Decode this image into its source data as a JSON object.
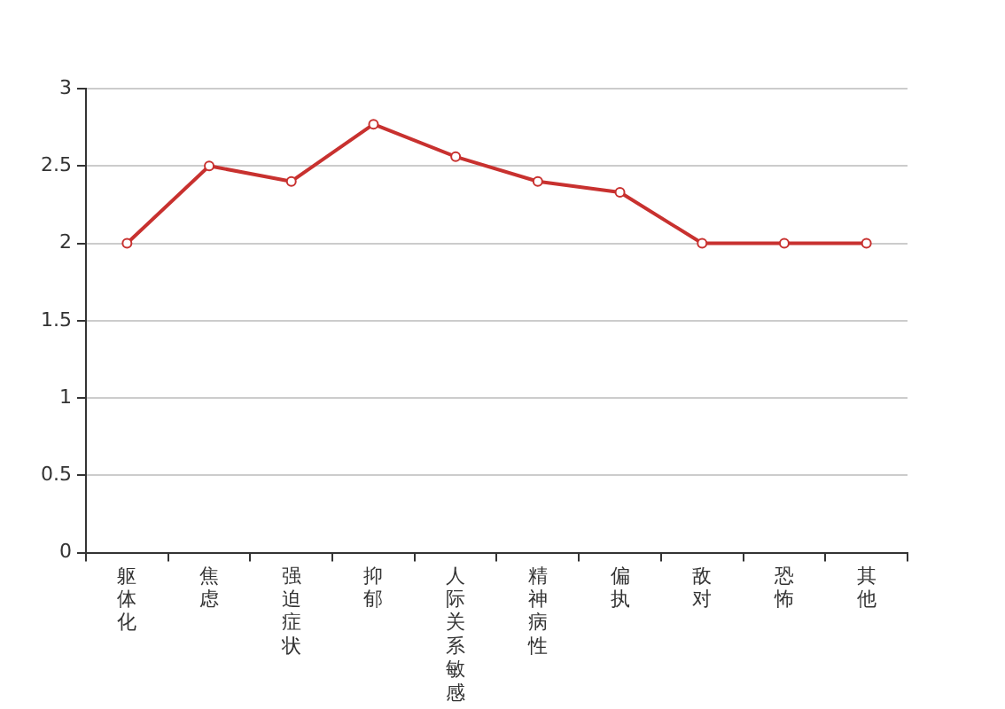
{
  "chart_data": {
    "type": "line",
    "categories": [
      "躯体化",
      "焦虑",
      "强迫症状",
      "抑郁",
      "人际关系敏感",
      "精神病性",
      "偏执",
      "敌对",
      "恐怖",
      "其他"
    ],
    "series": [
      {
        "color": "#c8312f",
        "values": [
          2,
          2.5,
          2.4,
          2.77,
          2.56,
          2.4,
          2.33,
          2,
          2,
          2
        ]
      }
    ],
    "ylim": [
      0,
      3
    ],
    "yticks": [
      0,
      0.5,
      1,
      1.5,
      2,
      2.5,
      3
    ],
    "grid": "y",
    "legend": false,
    "marker": "circle",
    "line_style": "solid"
  }
}
